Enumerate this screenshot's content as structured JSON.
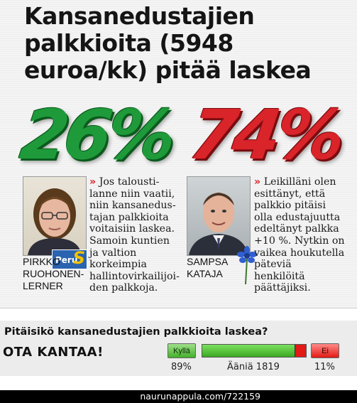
{
  "article": {
    "headline": "Kansanedustajien palkkioita (5948 euroa/kk) pitää laskea",
    "left": {
      "percent": "26%",
      "name_lines": [
        "PIRKKO",
        "RUOHONEN-",
        "LERNER"
      ],
      "quote_mark": "»",
      "quote": "Jos talousti-lanne niin vaatii, niin kansanedus-tajan palkkioita voitaisiin laskea. Samoin kuntien ja valtion korkeimpia hallintovirkailijoi-den palkkoja.",
      "party_badge": "Peru",
      "party_badge_letter": "S"
    },
    "right": {
      "percent": "74%",
      "name_lines": [
        "SAMPSA",
        "KATAJA"
      ],
      "quote_mark": "»",
      "quote": "Leikilläni olen esittänyt, että palkkio pitäisi olla edustajuutta edeltänyt palkka +10 %. Nytkin on vaikea houkutella päteviä henkilöitä päättäjiksi."
    },
    "colors": {
      "left_accent": "#1f9a3a",
      "right_accent": "#d9242a"
    },
    "icons": [
      "portrait-photo",
      "party-logo",
      "cornflower-icon"
    ]
  },
  "poll": {
    "question": "Pitäisikö kansanedustajien palkkioita laskea?",
    "cta": "OTA KANTAA!",
    "yes_label": "Kyllä",
    "no_label": "Ei",
    "yes_percent": "89%",
    "no_percent": "11%",
    "votes_label": "Ääniä 1819",
    "yes_fraction": 0.89
  },
  "footer": {
    "source": "naurunappula.com/722159"
  }
}
